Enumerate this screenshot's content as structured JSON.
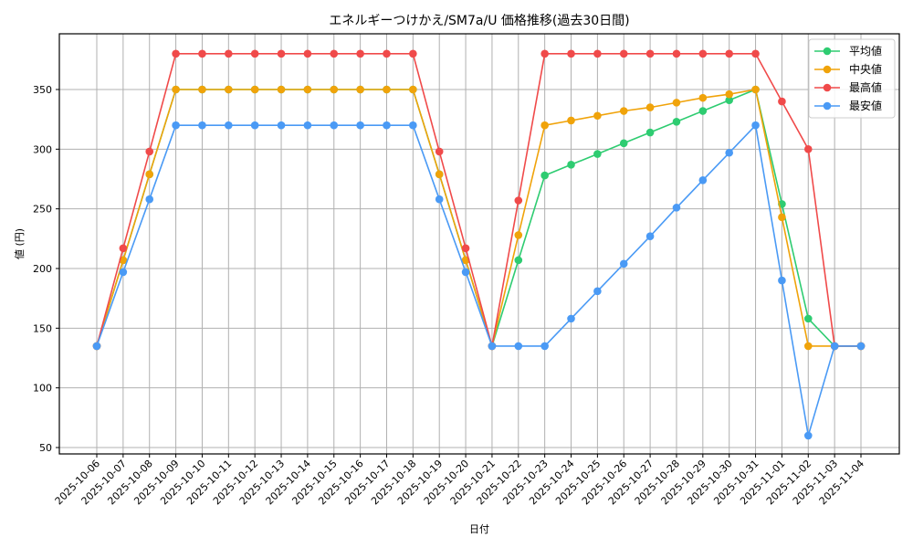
{
  "chart_data": {
    "type": "line",
    "title": "エネルギーつけかえ/SM7a/U 価格推移(過去30日間)",
    "xlabel": "日付",
    "ylabel": "値 (円)",
    "ylim": [
      44,
      395
    ],
    "yticks": [
      50,
      100,
      150,
      200,
      250,
      300,
      350
    ],
    "grid": true,
    "legend_position": "upper right",
    "categories": [
      "2025-10-06",
      "2025-10-07",
      "2025-10-08",
      "2025-10-09",
      "2025-10-10",
      "2025-10-11",
      "2025-10-12",
      "2025-10-13",
      "2025-10-14",
      "2025-10-15",
      "2025-10-16",
      "2025-10-17",
      "2025-10-18",
      "2025-10-19",
      "2025-10-20",
      "2025-10-21",
      "2025-10-22",
      "2025-10-23",
      "2025-10-24",
      "2025-10-25",
      "2025-10-26",
      "2025-10-27",
      "2025-10-28",
      "2025-10-29",
      "2025-10-30",
      "2025-10-31",
      "2025-11-01",
      "2025-11-02",
      "2025-11-03",
      "2025-11-04"
    ],
    "series": [
      {
        "name": "平均値",
        "color": "#2ecc71",
        "values": [
          135,
          207,
          279,
          350,
          350,
          350,
          350,
          350,
          350,
          350,
          350,
          350,
          350,
          279,
          207,
          135,
          207,
          278,
          287,
          296,
          305,
          314,
          323,
          332,
          341,
          350,
          254,
          158,
          135,
          135
        ]
      },
      {
        "name": "中央値",
        "color": "#f0a30a",
        "values": [
          135,
          207,
          279,
          350,
          350,
          350,
          350,
          350,
          350,
          350,
          350,
          350,
          350,
          279,
          207,
          135,
          228,
          320,
          324,
          328,
          332,
          335,
          339,
          343,
          346,
          350,
          243,
          135,
          135,
          135
        ]
      },
      {
        "name": "最高値",
        "color": "#f04a4a",
        "values": [
          135,
          217,
          298,
          380,
          380,
          380,
          380,
          380,
          380,
          380,
          380,
          380,
          380,
          298,
          217,
          135,
          257,
          380,
          380,
          380,
          380,
          380,
          380,
          380,
          380,
          380,
          340,
          300,
          135,
          135
        ]
      },
      {
        "name": "最安値",
        "color": "#4a9af5",
        "values": [
          135,
          197,
          258,
          320,
          320,
          320,
          320,
          320,
          320,
          320,
          320,
          320,
          320,
          258,
          197,
          135,
          135,
          135,
          158,
          181,
          204,
          227,
          251,
          274,
          297,
          320,
          190,
          60,
          135,
          135
        ]
      }
    ]
  }
}
